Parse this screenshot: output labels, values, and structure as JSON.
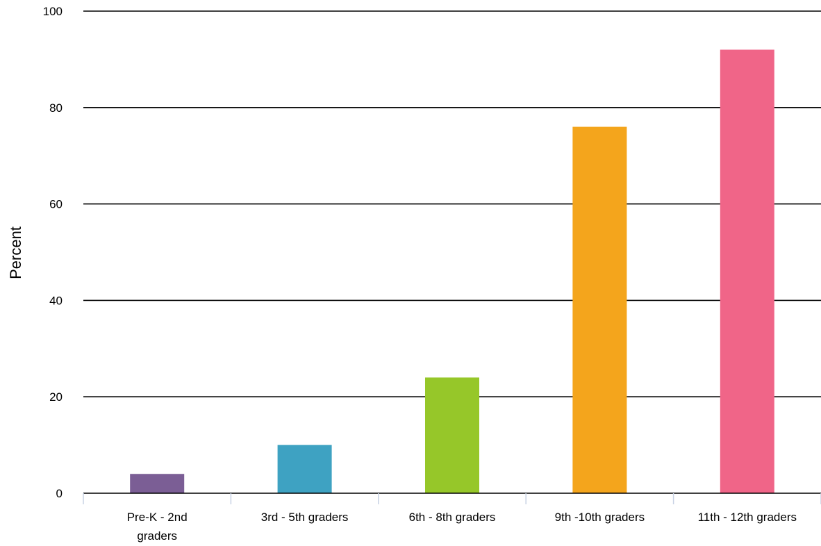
{
  "chart_data": {
    "type": "bar",
    "categories": [
      "Pre-K - 2nd graders",
      "3rd - 5th graders",
      "6th - 8th graders",
      "9th -10th graders",
      "11th - 12th graders"
    ],
    "category_lines": [
      [
        "Pre-K - 2nd",
        "graders"
      ],
      [
        "3rd - 5th graders"
      ],
      [
        "6th - 8th graders"
      ],
      [
        "9th -10th graders"
      ],
      [
        "11th - 12th graders"
      ]
    ],
    "values": [
      4,
      10,
      24,
      76,
      92
    ],
    "colors": [
      "#7b5e95",
      "#3ea2c2",
      "#96c729",
      "#f4a51c",
      "#f06588"
    ],
    "title": "",
    "xlabel": "",
    "ylabel": "Percent",
    "ylim": [
      0,
      100
    ],
    "yticks": [
      0,
      20,
      40,
      60,
      80,
      100
    ],
    "grid": true,
    "legend": "none"
  }
}
